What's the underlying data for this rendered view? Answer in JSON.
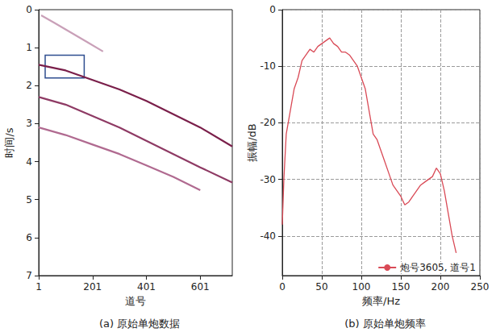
{
  "chart_data": [
    {
      "type": "line",
      "title": "(a) 原始单炮数据",
      "x_label": "道号",
      "y_label": "时间/s",
      "xlim": [
        1,
        720
      ],
      "xticks": [
        1,
        201,
        401,
        601
      ],
      "ylim": [
        7,
        0
      ],
      "yticks": [
        0,
        1,
        2,
        3,
        4,
        5,
        6,
        7
      ],
      "grid": false,
      "series": [
        {
          "color": "#c9a0b8",
          "x": [
            10,
            60,
            120,
            180,
            240
          ],
          "values": [
            0.15,
            0.35,
            0.6,
            0.85,
            1.1
          ]
        },
        {
          "color": "#7a1f4a",
          "x": [
            1,
            101,
            201,
            301,
            401,
            501,
            601,
            720
          ],
          "values": [
            1.45,
            1.6,
            1.85,
            2.1,
            2.4,
            2.75,
            3.1,
            3.6
          ]
        },
        {
          "color": "#8e3a64",
          "x": [
            1,
            101,
            201,
            301,
            401,
            501,
            601,
            720
          ],
          "values": [
            2.3,
            2.5,
            2.8,
            3.1,
            3.45,
            3.8,
            4.15,
            4.55
          ]
        },
        {
          "color": "#b06a90",
          "x": [
            1,
            101,
            201,
            301,
            401,
            501,
            601
          ],
          "values": [
            3.1,
            3.3,
            3.55,
            3.8,
            4.1,
            4.4,
            4.75
          ]
        }
      ],
      "box": {
        "x": [
          25,
          170
        ],
        "y": [
          1.2,
          1.8
        ],
        "color": "#2e4d8f"
      }
    },
    {
      "type": "line",
      "title": "(b) 原始单炮频率",
      "x_label": "频率/Hz",
      "y_label": "振幅/dB",
      "xlim": [
        0,
        250
      ],
      "xticks": [
        0,
        50,
        100,
        150,
        200,
        250
      ],
      "ylim": [
        -47,
        0
      ],
      "yticks": [
        -40,
        -30,
        -20,
        -10,
        0
      ],
      "grid": true,
      "legend": "lower right",
      "series": [
        {
          "name": "炮号3605, 道号1",
          "color": "#d94a56",
          "x": [
            0,
            2,
            5,
            10,
            15,
            20,
            25,
            30,
            35,
            40,
            45,
            50,
            55,
            60,
            65,
            70,
            75,
            80,
            85,
            90,
            95,
            100,
            105,
            110,
            115,
            120,
            125,
            130,
            135,
            140,
            145,
            150,
            155,
            160,
            165,
            170,
            175,
            180,
            185,
            190,
            195,
            200,
            205,
            210,
            215,
            220
          ],
          "values": [
            -38,
            -30,
            -22,
            -18,
            -14,
            -12,
            -9,
            -8,
            -7,
            -7.5,
            -6.5,
            -6,
            -5.5,
            -5,
            -6,
            -6.5,
            -7.5,
            -7.5,
            -8,
            -9,
            -10,
            -12,
            -14,
            -18,
            -22,
            -23,
            -25,
            -27,
            -29,
            -31,
            -32,
            -33,
            -34.5,
            -34,
            -33,
            -32,
            -31,
            -30.5,
            -30,
            -29.5,
            -28,
            -29,
            -32,
            -36,
            -40,
            -43
          ]
        }
      ]
    }
  ]
}
